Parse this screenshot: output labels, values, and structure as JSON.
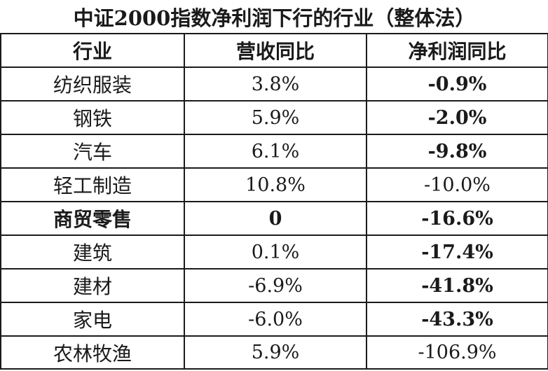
{
  "table": {
    "title": "中证2000指数净利润下行的行业（整体法）",
    "headers": [
      "行业",
      "营收同比",
      "净利润同比"
    ],
    "rows": [
      {
        "industry": "纺织服装",
        "revenue_yoy": "3.8%",
        "profit_yoy": "-0.9%"
      },
      {
        "industry": "钢铁",
        "revenue_yoy": "5.9%",
        "profit_yoy": "-2.0%"
      },
      {
        "industry": "汽车",
        "revenue_yoy": "6.1%",
        "profit_yoy": "-9.8%"
      },
      {
        "industry": "轻工制造",
        "revenue_yoy": "10.8%",
        "profit_yoy": "-10.0%"
      },
      {
        "industry": "商贸零售",
        "revenue_yoy": "0",
        "profit_yoy": "-16.6%"
      },
      {
        "industry": "建筑",
        "revenue_yoy": "0.1%",
        "profit_yoy": "-17.4%"
      },
      {
        "industry": "建材",
        "revenue_yoy": "-6.9%",
        "profit_yoy": "-41.8%"
      },
      {
        "industry": "家电",
        "revenue_yoy": "-6.0%",
        "profit_yoy": "-43.3%"
      },
      {
        "industry": "农林牧渔",
        "revenue_yoy": "5.9%",
        "profit_yoy": "-106.9%"
      }
    ]
  }
}
